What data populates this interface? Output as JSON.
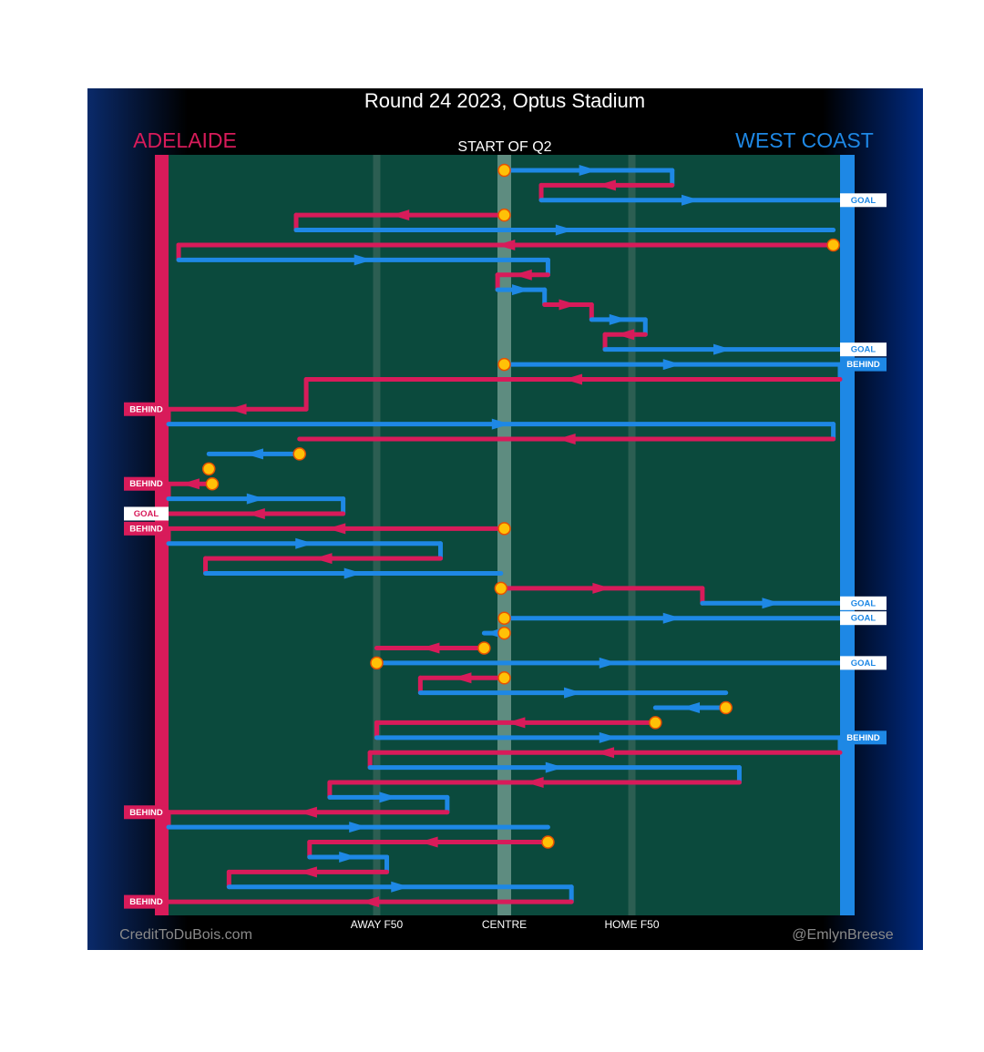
{
  "chart_data": {
    "type": "chains",
    "title": "Round 24 2023, Optus Stadium",
    "period": "START OF Q2",
    "teams": [
      {
        "name": "ADELAIDE",
        "color": "#d81b5a"
      },
      {
        "name": "WEST COAST",
        "color": "#1e88e5"
      }
    ],
    "xlim": [
      -100,
      100
    ],
    "xticks": [
      {
        "value": -38,
        "label": "AWAY F50"
      },
      {
        "value": 0,
        "label": "CENTRE"
      },
      {
        "value": 38,
        "label": "HOME F50"
      }
    ],
    "credit_left": "CreditToDuBois.com",
    "credit_right": "@EmlynBreese",
    "segments": [
      {
        "row": 1,
        "team": "WEST COAST",
        "from": 0,
        "to": 50,
        "stoppage": true
      },
      {
        "row": 2,
        "team": "ADELAIDE",
        "from": 50,
        "to": 11
      },
      {
        "row": 3,
        "team": "WEST COAST",
        "from": 11,
        "to": 100,
        "result": "GOAL"
      },
      {
        "row": 4,
        "team": "ADELAIDE",
        "from": 0,
        "to": -62,
        "stoppage": true
      },
      {
        "row": 5,
        "team": "WEST COAST",
        "from": -62,
        "to": 98
      },
      {
        "row": 6,
        "team": "ADELAIDE",
        "from": 98,
        "to": -97,
        "stoppage": true
      },
      {
        "row": 7,
        "team": "WEST COAST",
        "from": -97,
        "to": 13
      },
      {
        "row": 8,
        "team": "ADELAIDE",
        "from": 13,
        "to": -2
      },
      {
        "row": 9,
        "team": "WEST COAST",
        "from": -2,
        "to": 12
      },
      {
        "row": 10,
        "team": "ADELAIDE",
        "from": 12,
        "to": 26
      },
      {
        "row": 11,
        "team": "WEST COAST",
        "from": 26,
        "to": 42
      },
      {
        "row": 12,
        "team": "ADELAIDE",
        "from": 42,
        "to": 30
      },
      {
        "row": 13,
        "team": "WEST COAST",
        "from": 30,
        "to": 100,
        "result": "GOAL"
      },
      {
        "row": 14,
        "team": "WEST COAST",
        "from": 0,
        "to": 100,
        "stoppage": true,
        "result": "BEHIND"
      },
      {
        "row": 15,
        "team": "ADELAIDE",
        "from": 100,
        "to": -59
      },
      {
        "row": 17,
        "team": "ADELAIDE",
        "from": -59,
        "to": -100,
        "result": "BEHIND"
      },
      {
        "row": 18,
        "team": "WEST COAST",
        "from": -100,
        "to": 98
      },
      {
        "row": 19,
        "team": "ADELAIDE",
        "from": 98,
        "to": -61
      },
      {
        "row": 20,
        "team": "WEST COAST",
        "from": -61,
        "to": -88,
        "stoppage": true
      },
      {
        "row": 21,
        "team": "ADELAIDE",
        "from": -88,
        "to": -87,
        "stoppage": true
      },
      {
        "row": 22,
        "team": "ADELAIDE",
        "from": -87,
        "to": -100,
        "stoppage": true,
        "result": "BEHIND"
      },
      {
        "row": 23,
        "team": "WEST COAST",
        "from": -100,
        "to": -48
      },
      {
        "row": 24,
        "team": "ADELAIDE",
        "from": -48,
        "to": -100,
        "result": "GOAL"
      },
      {
        "row": 25,
        "team": "ADELAIDE",
        "from": 0,
        "to": -100,
        "stoppage": true,
        "result": "BEHIND"
      },
      {
        "row": 26,
        "team": "WEST COAST",
        "from": -100,
        "to": -19
      },
      {
        "row": 27,
        "team": "ADELAIDE",
        "from": -19,
        "to": -89
      },
      {
        "row": 28,
        "team": "WEST COAST",
        "from": -89,
        "to": -1
      },
      {
        "row": 29,
        "team": "ADELAIDE",
        "from": -1,
        "to": 59,
        "stoppage": true
      },
      {
        "row": 30,
        "team": "WEST COAST",
        "from": 59,
        "to": 100,
        "result": "GOAL"
      },
      {
        "row": 31,
        "team": "WEST COAST",
        "from": 0,
        "to": 100,
        "stoppage": true,
        "result": "GOAL"
      },
      {
        "row": 32,
        "team": "WEST COAST",
        "from": 0,
        "to": -6,
        "stoppage": true
      },
      {
        "row": 33,
        "team": "ADELAIDE",
        "from": -6,
        "to": -38,
        "stoppage": true
      },
      {
        "row": 34,
        "team": "WEST COAST",
        "from": -38,
        "to": 100,
        "stoppage": true,
        "result": "GOAL"
      },
      {
        "row": 35,
        "team": "ADELAIDE",
        "from": 0,
        "to": -25,
        "stoppage": true
      },
      {
        "row": 36,
        "team": "WEST COAST",
        "from": -25,
        "to": 66
      },
      {
        "row": 37,
        "team": "WEST COAST",
        "from": 66,
        "to": 45,
        "stoppage": true
      },
      {
        "row": 38,
        "team": "ADELAIDE",
        "from": 45,
        "to": -38,
        "stoppage": true
      },
      {
        "row": 39,
        "team": "WEST COAST",
        "from": -38,
        "to": 100,
        "result": "BEHIND"
      },
      {
        "row": 40,
        "team": "ADELAIDE",
        "from": 100,
        "to": -40
      },
      {
        "row": 41,
        "team": "WEST COAST",
        "from": -40,
        "to": 70
      },
      {
        "row": 42,
        "team": "ADELAIDE",
        "from": 70,
        "to": -52
      },
      {
        "row": 43,
        "team": "WEST COAST",
        "from": -52,
        "to": -17
      },
      {
        "row": 44,
        "team": "ADELAIDE",
        "from": -17,
        "to": -100,
        "result": "BEHIND"
      },
      {
        "row": 45,
        "team": "WEST COAST",
        "from": -100,
        "to": 13
      },
      {
        "row": 46,
        "team": "ADELAIDE",
        "from": 13,
        "to": -58,
        "stoppage": true
      },
      {
        "row": 47,
        "team": "WEST COAST",
        "from": -58,
        "to": -35
      },
      {
        "row": 48,
        "team": "ADELAIDE",
        "from": -35,
        "to": -82
      },
      {
        "row": 49,
        "team": "WEST COAST",
        "from": -82,
        "to": 20
      },
      {
        "row": 50,
        "team": "ADELAIDE",
        "from": 20,
        "to": -100,
        "result": "BEHIND"
      }
    ]
  }
}
